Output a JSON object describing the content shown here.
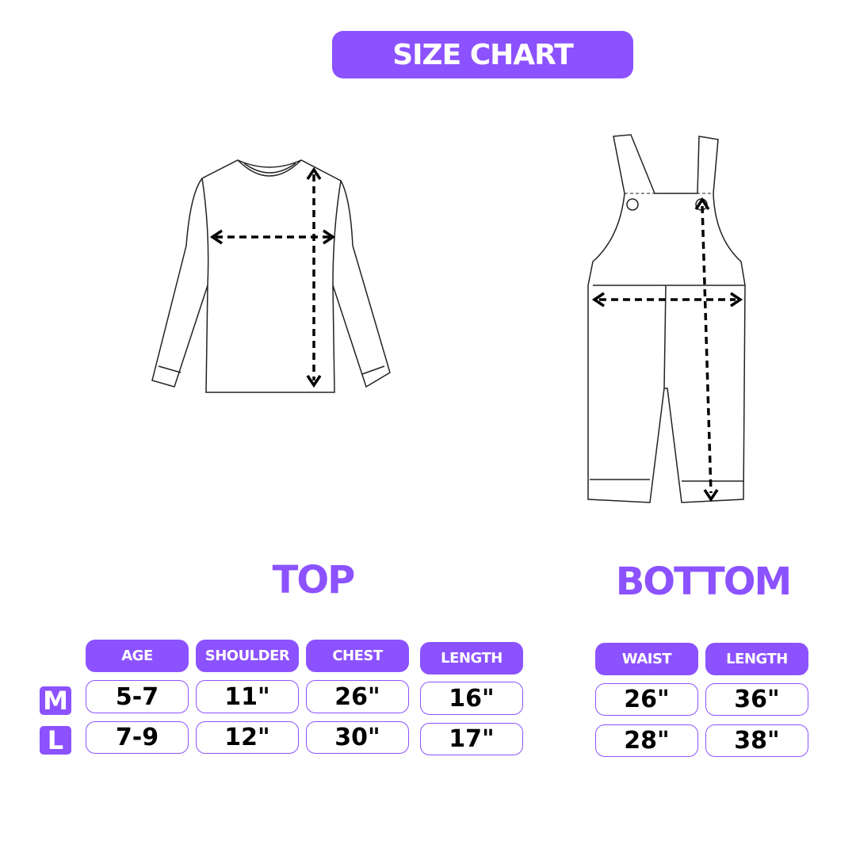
{
  "title": "SIZE CHART",
  "accent_color": "#8c52ff",
  "top": {
    "label": "TOP",
    "headers": [
      "AGE",
      "SHOULDER",
      "CHEST",
      "LENGTH"
    ],
    "rows": [
      {
        "size": "M",
        "values": [
          "5-7",
          "11\"",
          "26\"",
          "16\""
        ]
      },
      {
        "size": "L",
        "values": [
          "7-9",
          "12\"",
          "30\"",
          "17\""
        ]
      }
    ]
  },
  "bottom": {
    "label": "BOTTOM",
    "headers": [
      "WAIST",
      "LENGTH"
    ],
    "rows": [
      {
        "size": "M",
        "values": [
          "26\"",
          "36\""
        ]
      },
      {
        "size": "L",
        "values": [
          "28\"",
          "38\""
        ]
      }
    ]
  }
}
